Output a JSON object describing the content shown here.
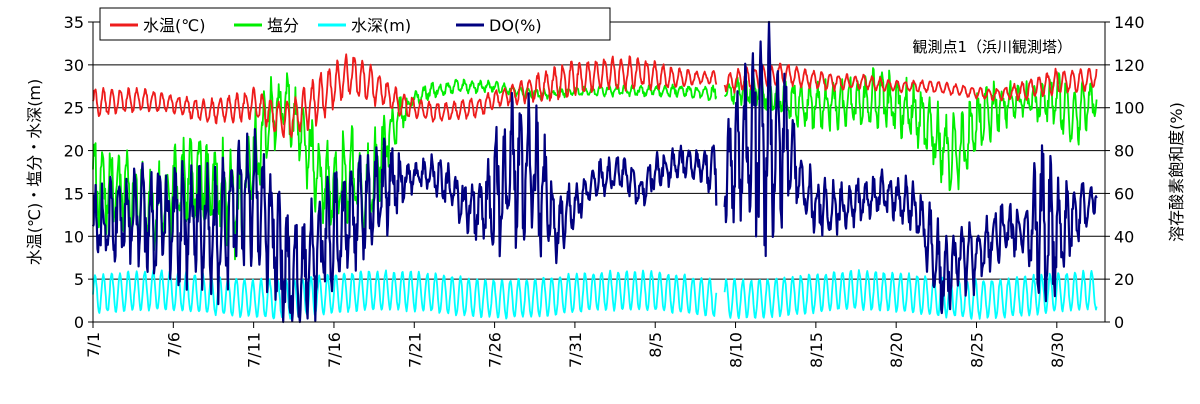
{
  "chart_data": {
    "type": "line",
    "title": "",
    "annotation": "観測点1（浜川観測塔）",
    "ylabel_left": "水温(℃)・塩分・水深(m)",
    "ylabel_right": "溶存酸素飽和度(%)",
    "xlabel": "",
    "x_range_days": [
      0,
      63
    ],
    "x_start": "7/1",
    "x_end": "9/2",
    "ylim_left": [
      0,
      35
    ],
    "ylim_right": [
      0,
      140
    ],
    "yticks_left": [
      0,
      5,
      10,
      15,
      20,
      25,
      30,
      35
    ],
    "yticks_right": [
      0,
      20,
      40,
      60,
      80,
      100,
      120,
      140
    ],
    "xticks": [
      {
        "day": 0,
        "label": "7/1"
      },
      {
        "day": 5,
        "label": "7/6"
      },
      {
        "day": 10,
        "label": "7/11"
      },
      {
        "day": 15,
        "label": "7/16"
      },
      {
        "day": 20,
        "label": "7/21"
      },
      {
        "day": 25,
        "label": "7/26"
      },
      {
        "day": 30,
        "label": "7/31"
      },
      {
        "day": 35,
        "label": "8/5"
      },
      {
        "day": 40,
        "label": "8/10"
      },
      {
        "day": 45,
        "label": "8/15"
      },
      {
        "day": 50,
        "label": "8/20"
      },
      {
        "day": 55,
        "label": "8/25"
      },
      {
        "day": 60,
        "label": "8/30"
      }
    ],
    "gap_days": [
      38.8,
      39.3
    ],
    "grid": true,
    "legend_placement": "top-left",
    "series": [
      {
        "name": "水温(℃)",
        "axis": "left",
        "color": "#ee1c1c",
        "style": "oscillation",
        "envelope": [
          [
            0,
            25.5
          ],
          [
            3,
            26
          ],
          [
            5,
            25.5
          ],
          [
            7,
            24.5
          ],
          [
            9,
            25
          ],
          [
            10,
            25.5
          ],
          [
            11,
            24.5
          ],
          [
            12,
            23.5
          ],
          [
            13,
            24.5
          ],
          [
            14,
            26
          ],
          [
            15,
            27.5
          ],
          [
            16,
            29
          ],
          [
            17,
            28
          ],
          [
            18,
            27
          ],
          [
            19,
            25.5
          ],
          [
            20,
            25
          ],
          [
            21,
            24.5
          ],
          [
            22,
            24.5
          ],
          [
            24,
            25
          ],
          [
            25,
            26
          ],
          [
            26,
            26.5
          ],
          [
            27,
            27
          ],
          [
            28,
            27.5
          ],
          [
            29,
            28
          ],
          [
            30,
            28.5
          ],
          [
            31,
            28.5
          ],
          [
            32,
            29
          ],
          [
            34,
            29
          ],
          [
            36,
            28.5
          ],
          [
            38.5,
            28.5
          ],
          [
            39.5,
            28
          ],
          [
            41,
            28.5
          ],
          [
            43,
            29
          ],
          [
            44,
            28.5
          ],
          [
            46,
            28
          ],
          [
            48,
            28
          ],
          [
            50,
            27.5
          ],
          [
            52,
            27.5
          ],
          [
            54,
            27
          ],
          [
            56,
            26.5
          ],
          [
            58,
            27
          ],
          [
            60,
            28
          ],
          [
            61,
            28
          ],
          [
            62.5,
            28.5
          ]
        ],
        "amplitude": [
          [
            0,
            1.5
          ],
          [
            5,
            1
          ],
          [
            10,
            1.5
          ],
          [
            14,
            2.5
          ],
          [
            17,
            2
          ],
          [
            20,
            1
          ],
          [
            26,
            1
          ],
          [
            29,
            1.8
          ],
          [
            34,
            1.6
          ],
          [
            38,
            0.6
          ],
          [
            40,
            1.2
          ],
          [
            44,
            1
          ],
          [
            50,
            0.6
          ],
          [
            56,
            0.6
          ],
          [
            60,
            1.3
          ],
          [
            62.5,
            1
          ]
        ],
        "period_days": 0.52
      },
      {
        "name": "塩分",
        "axis": "left",
        "color": "#00ee00",
        "style": "noisy",
        "envelope": [
          [
            0,
            16
          ],
          [
            2,
            15
          ],
          [
            4,
            13
          ],
          [
            6,
            17
          ],
          [
            8,
            16
          ],
          [
            9,
            13
          ],
          [
            10,
            19
          ],
          [
            11,
            24
          ],
          [
            12,
            25
          ],
          [
            13,
            22
          ],
          [
            14,
            17
          ],
          [
            15,
            15
          ],
          [
            16,
            18
          ],
          [
            17,
            14
          ],
          [
            18,
            20
          ],
          [
            19,
            24
          ],
          [
            20,
            26
          ],
          [
            21,
            27
          ],
          [
            23,
            27.5
          ],
          [
            25,
            27.5
          ],
          [
            26,
            27
          ],
          [
            28,
            26.5
          ],
          [
            30,
            27
          ],
          [
            31,
            27
          ],
          [
            33,
            27
          ],
          [
            35,
            27
          ],
          [
            37,
            27
          ],
          [
            38.5,
            26.5
          ],
          [
            39.5,
            27
          ],
          [
            41,
            27
          ],
          [
            43,
            26
          ],
          [
            45,
            25
          ],
          [
            47,
            25.5
          ],
          [
            49,
            26
          ],
          [
            51,
            24.5
          ],
          [
            52,
            23
          ],
          [
            53,
            20
          ],
          [
            54,
            19
          ],
          [
            55,
            23
          ],
          [
            56,
            25
          ],
          [
            58,
            26
          ],
          [
            60,
            26
          ],
          [
            61,
            24
          ],
          [
            62.5,
            26
          ]
        ],
        "amplitude": [
          [
            0,
            5
          ],
          [
            9,
            6
          ],
          [
            12,
            4
          ],
          [
            17,
            6
          ],
          [
            20,
            1
          ],
          [
            25,
            0.7
          ],
          [
            30,
            0.6
          ],
          [
            38,
            0.8
          ],
          [
            40,
            1.5
          ],
          [
            45,
            3
          ],
          [
            52,
            4
          ],
          [
            54,
            5
          ],
          [
            58,
            2
          ],
          [
            61,
            4
          ],
          [
            62.5,
            2
          ]
        ],
        "period_days": 0.5
      },
      {
        "name": "水深(m)",
        "axis": "left",
        "color": "#00ffff",
        "style": "sine",
        "baseline": 3.2,
        "amplitude": 2.2,
        "period_days": 0.517
      },
      {
        "name": "DO(%)",
        "axis": "right",
        "color": "#00007f",
        "style": "noisy",
        "envelope": [
          [
            0,
            45
          ],
          [
            2,
            50
          ],
          [
            4,
            48
          ],
          [
            6,
            45
          ],
          [
            8,
            40
          ],
          [
            9,
            55
          ],
          [
            10,
            60
          ],
          [
            11,
            45
          ],
          [
            12,
            25
          ],
          [
            13,
            20
          ],
          [
            14,
            30
          ],
          [
            15,
            45
          ],
          [
            16,
            50
          ],
          [
            17,
            55
          ],
          [
            18,
            60
          ],
          [
            19,
            65
          ],
          [
            20,
            68
          ],
          [
            21,
            70
          ],
          [
            22,
            65
          ],
          [
            23,
            55
          ],
          [
            24,
            50
          ],
          [
            25,
            60
          ],
          [
            26,
            70
          ],
          [
            27,
            75
          ],
          [
            28,
            60
          ],
          [
            29,
            45
          ],
          [
            30,
            55
          ],
          [
            31,
            65
          ],
          [
            33,
            70
          ],
          [
            34,
            60
          ],
          [
            35,
            70
          ],
          [
            36,
            72
          ],
          [
            37,
            75
          ],
          [
            38.5,
            70
          ],
          [
            39.5,
            68
          ],
          [
            40,
            75
          ],
          [
            41,
            85
          ],
          [
            42,
            90
          ],
          [
            43,
            85
          ],
          [
            44,
            65
          ],
          [
            45,
            55
          ],
          [
            46,
            52
          ],
          [
            47,
            55
          ],
          [
            48,
            58
          ],
          [
            49,
            60
          ],
          [
            50,
            58
          ],
          [
            51,
            55
          ],
          [
            52,
            40
          ],
          [
            53,
            20
          ],
          [
            54,
            30
          ],
          [
            55,
            30
          ],
          [
            56,
            40
          ],
          [
            57,
            45
          ],
          [
            58,
            40
          ],
          [
            59,
            45
          ],
          [
            60,
            40
          ],
          [
            61,
            50
          ],
          [
            62,
            55
          ],
          [
            62.5,
            60
          ]
        ],
        "amplitude": [
          [
            0,
            20
          ],
          [
            9,
            35
          ],
          [
            14,
            30
          ],
          [
            18,
            25
          ],
          [
            20,
            6
          ],
          [
            24,
            15
          ],
          [
            26,
            40
          ],
          [
            28,
            30
          ],
          [
            30,
            10
          ],
          [
            38,
            8
          ],
          [
            40,
            30
          ],
          [
            42,
            60
          ],
          [
            44,
            15
          ],
          [
            50,
            10
          ],
          [
            52,
            20
          ],
          [
            56,
            15
          ],
          [
            58,
            12
          ],
          [
            59,
            40
          ],
          [
            61,
            15
          ],
          [
            62.5,
            8
          ]
        ],
        "period_days": 0.5
      }
    ]
  }
}
